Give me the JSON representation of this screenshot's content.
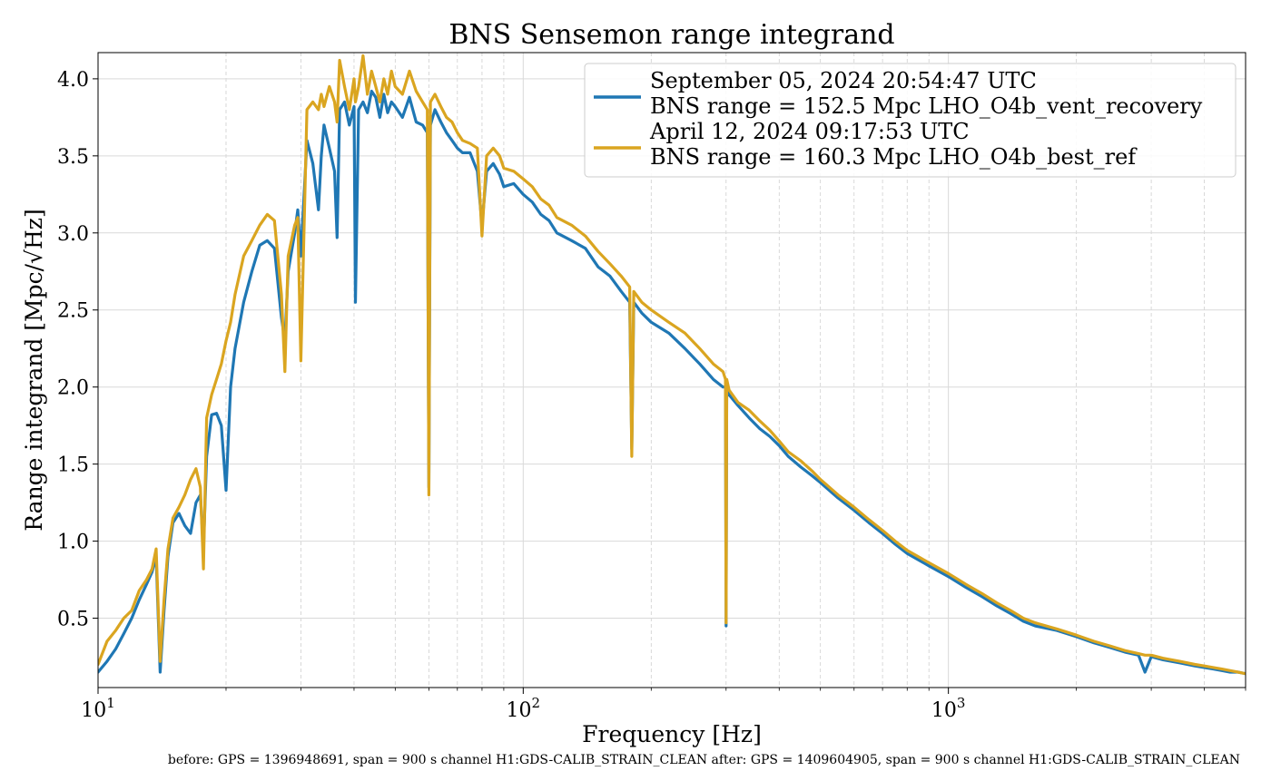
{
  "chart_data": {
    "type": "line",
    "title": "BNS Sensemon range integrand",
    "xlabel": "Frequency [Hz]",
    "ylabel": "Range integrand [Mpc/√Hz]",
    "xscale": "log",
    "xlim": [
      10,
      5000
    ],
    "ylim": [
      0.05,
      4.17
    ],
    "grid": true,
    "legend_position": "top-right",
    "x_ticks": [
      {
        "value": 10,
        "base": "10",
        "exp": "1"
      },
      {
        "value": 100,
        "base": "10",
        "exp": "2"
      },
      {
        "value": 1000,
        "base": "10",
        "exp": "3"
      }
    ],
    "y_ticks": [
      {
        "value": 0.5,
        "label": "0.5"
      },
      {
        "value": 1.0,
        "label": "1.0"
      },
      {
        "value": 1.5,
        "label": "1.5"
      },
      {
        "value": 2.0,
        "label": "2.0"
      },
      {
        "value": 2.5,
        "label": "2.5"
      },
      {
        "value": 3.0,
        "label": "3.0"
      },
      {
        "value": 3.5,
        "label": "3.5"
      },
      {
        "value": 4.0,
        "label": "4.0"
      }
    ],
    "series": [
      {
        "name": "September 05, 2024 20:54:47 UTC\nBNS range = 152.5 Mpc LHO_O4b_vent_recovery",
        "legend_lines": [
          "September 05, 2024 20:54:47 UTC",
          "BNS range = 152.5 Mpc LHO_O4b_vent_recovery"
        ],
        "color": "#1f77b4",
        "x": [
          10,
          10.5,
          11,
          11.5,
          12,
          12.5,
          13,
          13.4,
          13.7,
          14,
          14.3,
          14.6,
          15,
          15.5,
          16,
          16.5,
          17,
          17.4,
          17.7,
          18,
          18.5,
          19,
          19.5,
          20,
          20.5,
          21,
          22,
          23,
          24,
          25,
          26,
          27,
          27.5,
          28,
          29,
          29.5,
          30,
          31,
          32,
          33,
          33.5,
          34,
          35,
          36,
          36.5,
          37,
          38,
          39,
          40,
          40.3,
          41,
          42,
          43,
          44,
          45,
          46,
          47,
          48,
          49,
          50,
          52,
          54,
          56,
          58,
          59.5,
          60,
          60.5,
          62,
          64,
          66,
          68,
          70,
          72,
          75,
          78,
          80,
          82,
          85,
          88,
          90,
          95,
          100,
          105,
          110,
          115,
          120,
          130,
          140,
          150,
          160,
          170,
          178,
          180,
          182,
          190,
          200,
          220,
          240,
          260,
          280,
          295,
          299,
          300,
          301,
          305,
          320,
          340,
          360,
          380,
          400,
          420,
          450,
          480,
          500,
          550,
          600,
          650,
          700,
          750,
          800,
          900,
          1000,
          1100,
          1200,
          1300,
          1400,
          1500,
          1600,
          1800,
          2000,
          2200,
          2400,
          2600,
          2800,
          2900,
          3000,
          3200,
          3500,
          3800,
          4000,
          4200,
          4400,
          4600,
          4800,
          5000
        ],
        "values": [
          0.15,
          0.22,
          0.3,
          0.4,
          0.5,
          0.62,
          0.72,
          0.8,
          0.9,
          0.15,
          0.55,
          0.9,
          1.12,
          1.18,
          1.1,
          1.05,
          1.25,
          1.3,
          0.95,
          1.55,
          1.82,
          1.83,
          1.75,
          1.33,
          2.0,
          2.25,
          2.55,
          2.75,
          2.92,
          2.95,
          2.9,
          2.45,
          2.3,
          2.75,
          3.0,
          3.15,
          2.85,
          3.6,
          3.45,
          3.15,
          3.5,
          3.7,
          3.55,
          3.4,
          2.97,
          3.8,
          3.85,
          3.7,
          3.82,
          2.55,
          3.8,
          3.85,
          3.78,
          3.92,
          3.88,
          3.75,
          3.9,
          3.78,
          3.85,
          3.82,
          3.75,
          3.88,
          3.72,
          3.7,
          3.65,
          1.35,
          3.7,
          3.8,
          3.72,
          3.65,
          3.6,
          3.55,
          3.52,
          3.52,
          3.4,
          3.05,
          3.4,
          3.45,
          3.38,
          3.3,
          3.32,
          3.25,
          3.2,
          3.12,
          3.08,
          3.0,
          2.95,
          2.9,
          2.78,
          2.72,
          2.62,
          2.55,
          1.6,
          2.55,
          2.48,
          2.42,
          2.35,
          2.25,
          2.15,
          2.05,
          2.0,
          2.0,
          0.45,
          2.0,
          1.95,
          1.88,
          1.8,
          1.73,
          1.68,
          1.62,
          1.55,
          1.48,
          1.42,
          1.38,
          1.28,
          1.2,
          1.12,
          1.05,
          0.98,
          0.92,
          0.84,
          0.77,
          0.7,
          0.64,
          0.58,
          0.53,
          0.48,
          0.45,
          0.42,
          0.38,
          0.34,
          0.31,
          0.28,
          0.26,
          0.15,
          0.25,
          0.23,
          0.21,
          0.19,
          0.18,
          0.17,
          0.16,
          0.15,
          0.15,
          0.14
        ]
      },
      {
        "name": "April 12, 2024 09:17:53 UTC\nBNS range = 160.3 Mpc LHO_O4b_best_ref",
        "legend_lines": [
          "April 12, 2024 09:17:53 UTC",
          "BNS range = 160.3 Mpc LHO_O4b_best_ref"
        ],
        "color": "#daa520",
        "x": [
          10,
          10.5,
          11,
          11.5,
          12,
          12.5,
          13,
          13.4,
          13.7,
          14,
          14.3,
          14.6,
          15,
          15.5,
          16,
          16.5,
          17,
          17.4,
          17.7,
          18,
          18.5,
          19,
          19.5,
          20,
          20.5,
          21,
          22,
          23,
          24,
          25,
          26,
          27,
          27.5,
          28,
          29,
          29.5,
          30,
          31,
          32,
          33,
          33.5,
          34,
          35,
          36,
          36.5,
          37,
          38,
          39,
          40,
          40.3,
          41,
          42,
          43,
          44,
          45,
          46,
          47,
          48,
          49,
          50,
          52,
          54,
          56,
          58,
          59.5,
          60,
          60.5,
          62,
          64,
          66,
          68,
          70,
          72,
          75,
          78,
          80,
          82,
          85,
          88,
          90,
          95,
          100,
          105,
          110,
          115,
          120,
          130,
          140,
          150,
          160,
          170,
          178,
          180,
          182,
          190,
          200,
          220,
          240,
          260,
          280,
          295,
          299,
          300,
          301,
          305,
          320,
          340,
          360,
          380,
          400,
          420,
          450,
          480,
          500,
          550,
          600,
          650,
          700,
          750,
          800,
          900,
          1000,
          1100,
          1200,
          1300,
          1400,
          1500,
          1600,
          1800,
          2000,
          2200,
          2400,
          2600,
          2800,
          2900,
          3000,
          3200,
          3500,
          3800,
          4000,
          4200,
          4400,
          4600,
          4800,
          5000
        ],
        "values": [
          0.2,
          0.35,
          0.42,
          0.5,
          0.55,
          0.68,
          0.75,
          0.82,
          0.95,
          0.22,
          0.62,
          0.95,
          1.15,
          1.22,
          1.3,
          1.4,
          1.47,
          1.35,
          0.82,
          1.8,
          1.95,
          2.05,
          2.15,
          2.3,
          2.42,
          2.6,
          2.85,
          2.95,
          3.05,
          3.12,
          3.08,
          2.6,
          2.1,
          2.85,
          3.05,
          3.1,
          2.17,
          3.8,
          3.85,
          3.8,
          3.9,
          3.82,
          3.95,
          3.85,
          3.72,
          4.12,
          3.95,
          3.8,
          4.0,
          3.85,
          3.95,
          4.15,
          3.9,
          4.05,
          3.95,
          3.85,
          4.0,
          3.9,
          4.05,
          3.95,
          3.9,
          4.05,
          3.92,
          3.85,
          3.8,
          1.3,
          3.85,
          3.9,
          3.82,
          3.75,
          3.72,
          3.65,
          3.6,
          3.58,
          3.55,
          2.98,
          3.5,
          3.55,
          3.5,
          3.42,
          3.4,
          3.35,
          3.3,
          3.22,
          3.18,
          3.1,
          3.05,
          2.98,
          2.88,
          2.8,
          2.72,
          2.65,
          1.55,
          2.62,
          2.55,
          2.5,
          2.42,
          2.35,
          2.25,
          2.15,
          2.1,
          2.05,
          0.47,
          2.05,
          1.98,
          1.9,
          1.85,
          1.78,
          1.72,
          1.65,
          1.58,
          1.52,
          1.45,
          1.4,
          1.3,
          1.22,
          1.14,
          1.07,
          1.0,
          0.94,
          0.86,
          0.79,
          0.72,
          0.66,
          0.6,
          0.55,
          0.5,
          0.47,
          0.43,
          0.39,
          0.35,
          0.32,
          0.29,
          0.27,
          0.26,
          0.26,
          0.24,
          0.22,
          0.2,
          0.19,
          0.18,
          0.17,
          0.16,
          0.15,
          0.14
        ]
      }
    ]
  },
  "footer_text": "before: GPS = 1396948691, span = 900 s channel H1:GDS-CALIB_STRAIN_CLEAN after: GPS = 1409604905, span = 900 s channel H1:GDS-CALIB_STRAIN_CLEAN"
}
